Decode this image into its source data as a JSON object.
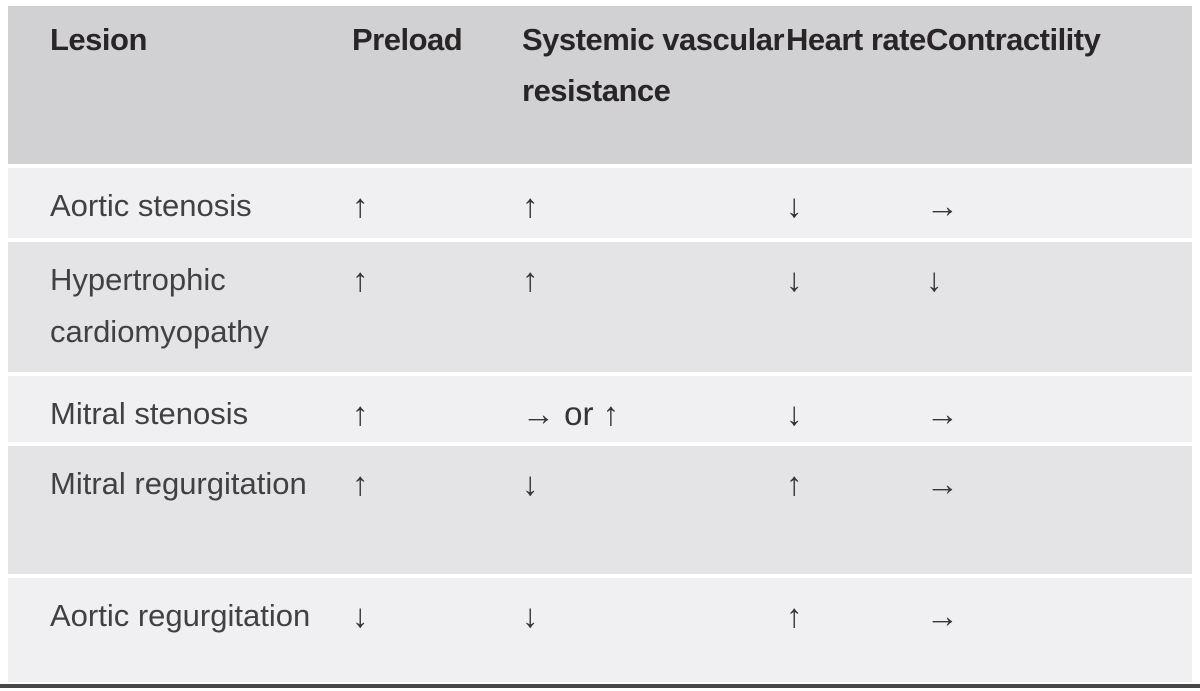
{
  "table": {
    "headers": [
      "Lesion",
      "Preload",
      "Systemic vascular resistance",
      "Heart rate",
      "Contractility"
    ],
    "rows": [
      {
        "lesion": "Aortic stenosis",
        "preload": "↑",
        "systemic_vascular_resistance": "↑",
        "heart_rate": "↓",
        "contractility": "→"
      },
      {
        "lesion": "Hypertrophic cardiomyopathy",
        "preload": "↑",
        "systemic_vascular_resistance": "↑",
        "heart_rate": "↓",
        "contractility": "↓"
      },
      {
        "lesion": "Mitral stenosis",
        "preload": "↑",
        "systemic_vascular_resistance": "→ or ↑",
        "heart_rate": "↓",
        "contractility": "→"
      },
      {
        "lesion": "Mitral regurgitation",
        "preload": "↑",
        "systemic_vascular_resistance": "↓",
        "heart_rate": "↑",
        "contractility": "→"
      },
      {
        "lesion": "Aortic regurgitation",
        "preload": "↓",
        "systemic_vascular_resistance": "↓",
        "heart_rate": "↑",
        "contractility": "→"
      }
    ],
    "legend": {
      "up_arrow_meaning": "↑",
      "down_arrow_meaning": "↓",
      "maintain_arrow_meaning": "→"
    },
    "colors": {
      "header_bg": "#d1d1d3",
      "row_light_bg": "#f0f0f2",
      "row_dark_bg": "#e4e4e7",
      "separator": "#ffffff",
      "bottom_rule": "#474747",
      "header_text": "#292527",
      "body_text": "#414144",
      "arrow_text": "#353538"
    }
  }
}
